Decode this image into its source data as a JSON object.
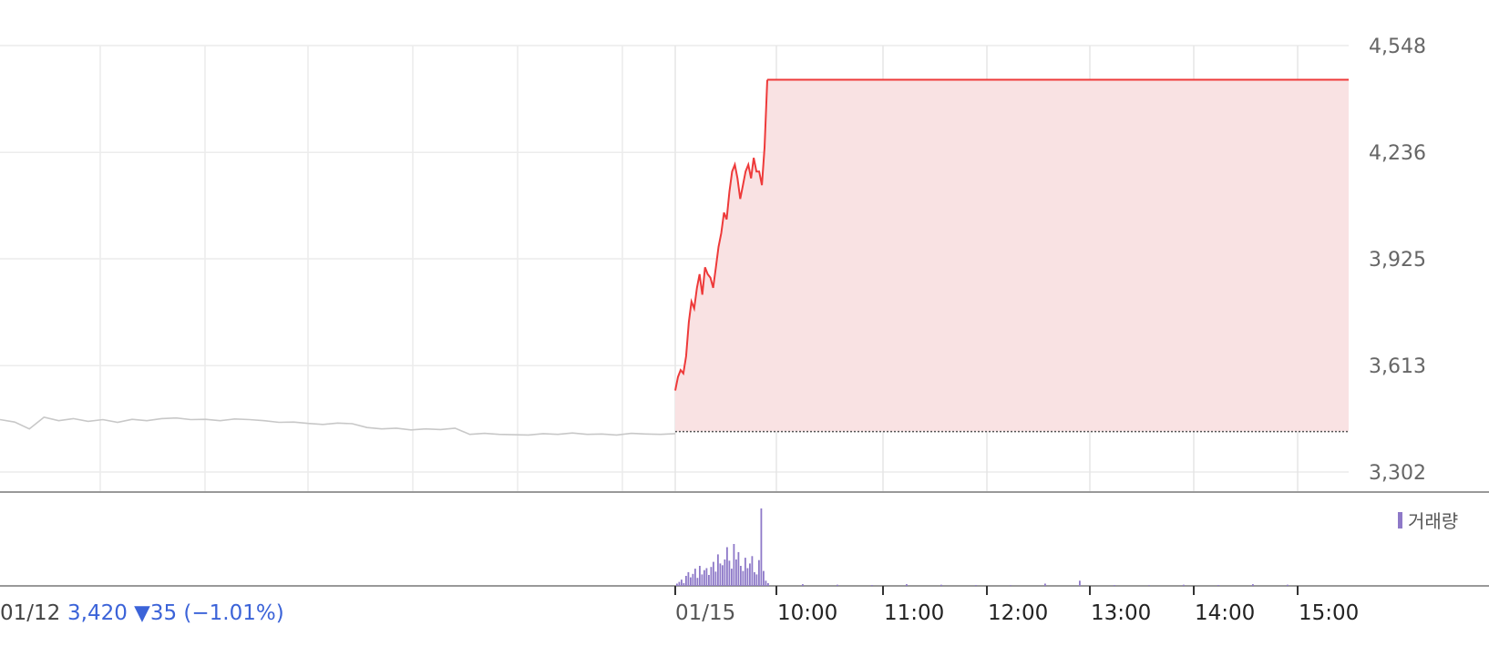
{
  "chart_data": {
    "type": "line",
    "y_axis": {
      "ticks": [
        4548,
        4236,
        3925,
        3613,
        3302
      ],
      "tick_labels": [
        "4,548",
        "4,236",
        "3,925",
        "3,613",
        "3,302"
      ],
      "range": [
        3302,
        4548
      ],
      "position": "right"
    },
    "x_axis": {
      "tick_labels": [
        "01/15",
        "10:00",
        "11:00",
        "12:00",
        "13:00",
        "14:00",
        "15:00"
      ]
    },
    "previous_day": {
      "date": "01/12",
      "summary": "3,420 ▼35 (−1.01%)",
      "baseline": 3420
    },
    "series": [
      {
        "id": "prev",
        "color": "#c8c8c8",
        "values": [
          3455,
          3448,
          3428,
          3462,
          3452,
          3458,
          3450,
          3455,
          3447,
          3456,
          3452,
          3458,
          3460,
          3455,
          3456,
          3452,
          3457,
          3455,
          3452,
          3447,
          3448,
          3444,
          3441,
          3445,
          3443,
          3432,
          3428,
          3430,
          3425,
          3428,
          3426,
          3430,
          3412,
          3415,
          3412,
          3411,
          3410,
          3414,
          3412,
          3416,
          3412,
          3413,
          3410,
          3415,
          3413,
          3412,
          3414
        ]
      },
      {
        "id": "today",
        "color": "#ee3a3a",
        "fill": "#f9e2e3",
        "values": [
          3540,
          3580,
          3600,
          3590,
          3640,
          3740,
          3800,
          3780,
          3840,
          3880,
          3820,
          3900,
          3880,
          3870,
          3840,
          3900,
          3960,
          4000,
          4060,
          4040,
          4120,
          4180,
          4200,
          4160,
          4100,
          4140,
          4180,
          4200,
          4160,
          4220,
          4180,
          4180,
          4140,
          4250,
          4448
        ],
        "close": 4448
      }
    ],
    "volume": {
      "legend": "거래량",
      "color": "#8e79c8",
      "bars": [
        8,
        14,
        22,
        10,
        35,
        48,
        30,
        42,
        60,
        28,
        70,
        40,
        55,
        62,
        38,
        66,
        84,
        50,
        110,
        78,
        72,
        92,
        135,
        88,
        60,
        146,
        92,
        118,
        70,
        52,
        98,
        62,
        78,
        104,
        48,
        40,
        90,
        270,
        52,
        18,
        10,
        6,
        4,
        3,
        6,
        4,
        3,
        2,
        8,
        18,
        3,
        2,
        4,
        3,
        6,
        4
      ]
    },
    "grid": true,
    "legend_position": "top-right"
  }
}
